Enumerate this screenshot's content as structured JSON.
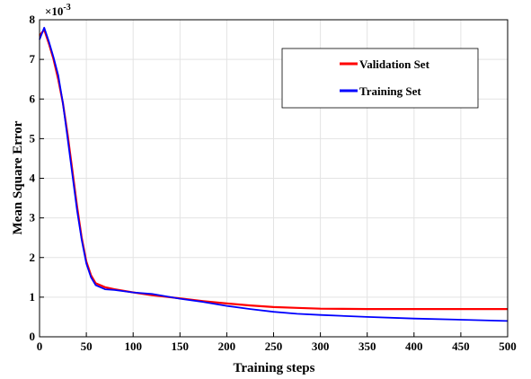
{
  "chart_data": {
    "type": "line",
    "xlabel": "Training steps",
    "ylabel": "Mean Square Error",
    "y_scale_label": "×10",
    "y_scale_exponent": "-3",
    "xlim": [
      0,
      500
    ],
    "ylim": [
      0,
      8
    ],
    "x_ticks": [
      "0",
      "50",
      "100",
      "150",
      "200",
      "250",
      "300",
      "350",
      "400",
      "450",
      "500"
    ],
    "y_ticks": [
      "0",
      "1",
      "2",
      "3",
      "4",
      "5",
      "6",
      "7",
      "8"
    ],
    "grid": true,
    "legend_position": "top-right",
    "series": [
      {
        "name": "Validation Set",
        "color": "#ff0000",
        "x": [
          0,
          5,
          10,
          15,
          20,
          25,
          30,
          35,
          40,
          45,
          50,
          55,
          60,
          70,
          80,
          100,
          120,
          150,
          175,
          200,
          225,
          250,
          275,
          300,
          350,
          400,
          450,
          500
        ],
        "y": [
          7.6,
          7.75,
          7.4,
          7.0,
          6.5,
          5.9,
          5.1,
          4.2,
          3.3,
          2.5,
          1.9,
          1.55,
          1.35,
          1.25,
          1.2,
          1.12,
          1.05,
          0.97,
          0.9,
          0.84,
          0.79,
          0.75,
          0.73,
          0.71,
          0.7,
          0.7,
          0.7,
          0.7
        ]
      },
      {
        "name": "Training Set",
        "color": "#0000ff",
        "x": [
          0,
          5,
          10,
          15,
          20,
          25,
          30,
          35,
          40,
          45,
          50,
          55,
          60,
          70,
          80,
          100,
          120,
          150,
          175,
          200,
          225,
          250,
          275,
          300,
          350,
          400,
          450,
          500
        ],
        "y": [
          7.5,
          7.8,
          7.45,
          7.05,
          6.6,
          5.9,
          5.0,
          4.1,
          3.2,
          2.45,
          1.85,
          1.5,
          1.3,
          1.2,
          1.18,
          1.12,
          1.08,
          0.96,
          0.88,
          0.78,
          0.7,
          0.63,
          0.58,
          0.55,
          0.5,
          0.46,
          0.43,
          0.4
        ]
      }
    ]
  }
}
